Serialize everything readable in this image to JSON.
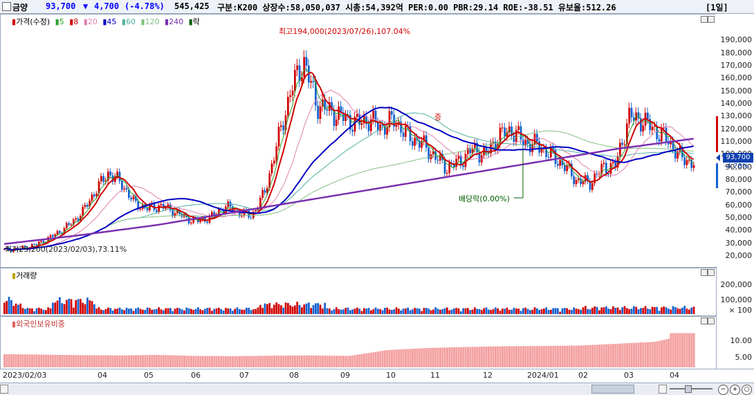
{
  "header": {
    "stock_name": "금양",
    "price": "93,700",
    "change_arrow": "▼",
    "change": "4,700",
    "change_pct": "(-4.78%)",
    "volume": "545,425",
    "info": "구분:K200 상장수:58,050,037 시총:54,392억 PER:0.00 PBR:29.14 ROE:-38.51 유보율:512.26",
    "period_button": "[1일]"
  },
  "price_panel": {
    "legend": [
      {
        "label": "가격(수정)",
        "color": "#d00000"
      },
      {
        "label": "5",
        "color": "#2aa02a"
      },
      {
        "label": "8",
        "color": "#d00000"
      },
      {
        "label": "20",
        "color": "#e080b0"
      },
      {
        "label": "45",
        "color": "#0000c0"
      },
      {
        "label": "60",
        "color": "#50b0a0"
      },
      {
        "label": "120",
        "color": "#80c080"
      },
      {
        "label": "240",
        "color": "#7a2fb0"
      },
      {
        "label": "락",
        "color": "#006000"
      }
    ],
    "y_ticks": [
      "190,000",
      "180,000",
      "170,000",
      "160,000",
      "150,000",
      "140,000",
      "130,000",
      "120,000",
      "110,000",
      "100,000",
      "90,000",
      "80,000",
      "70,000",
      "60,000",
      "50,000",
      "40,000",
      "30,000",
      "20,000"
    ],
    "current_price_tag": "93,700",
    "current_change_tag": "-4.78%",
    "high_note": "최고194,000(2023/07/26),107.04%",
    "low_note": "최저25,200(2023/02/03),73.11%",
    "ex_dividend_note": "배당락(0.00%)",
    "split_note": "증"
  },
  "volume_panel": {
    "title": "거래량",
    "y_ticks": [
      "200,000",
      "100,000",
      "× 100"
    ]
  },
  "foreign_panel": {
    "title": "외국인보유비중",
    "y_ticks": [
      "10.00",
      "5.00"
    ]
  },
  "x_axis": [
    "2023/02/03",
    "04",
    "05",
    "06",
    "07",
    "08",
    "09",
    "10",
    "11",
    "12",
    "2024/01",
    "02",
    "03",
    "04"
  ],
  "colors": {
    "up": "#d00000",
    "down": "#1060d0",
    "ma240": "#7a2fb0",
    "ma45": "#0000c0"
  },
  "chart_data": {
    "type": "candlestick",
    "x_start": "2023/02/03",
    "close_approx": [
      25200,
      26000,
      28000,
      32000,
      38000,
      45000,
      55000,
      72000,
      86000,
      78000,
      62000,
      58000,
      60000,
      56000,
      50000,
      48000,
      52000,
      60000,
      55000,
      52000,
      70000,
      110000,
      150000,
      175000,
      140000,
      135000,
      130000,
      125000,
      128000,
      122000,
      128000,
      115000,
      110000,
      100000,
      90000,
      95000,
      105000,
      100000,
      115000,
      120000,
      110000,
      108000,
      100000,
      92000,
      80000,
      78000,
      90000,
      92000,
      130000,
      128000,
      120000,
      112000,
      98000,
      93700
    ],
    "ma240_approx": [
      15000,
      22000,
      30000,
      40000,
      50000,
      60000,
      70000,
      80000,
      90000,
      98000
    ],
    "volume_ylim": [
      0,
      250000
    ],
    "foreign_ratio_approx": [
      5.2,
      5.0,
      4.8,
      4.7,
      4.9,
      4.5,
      4.4,
      4.6,
      4.7,
      4.5,
      6.8,
      7.6,
      8.0,
      8.3,
      8.4,
      8.6,
      9.3,
      10.1,
      13.5
    ],
    "ylim": [
      20000,
      200000
    ]
  }
}
